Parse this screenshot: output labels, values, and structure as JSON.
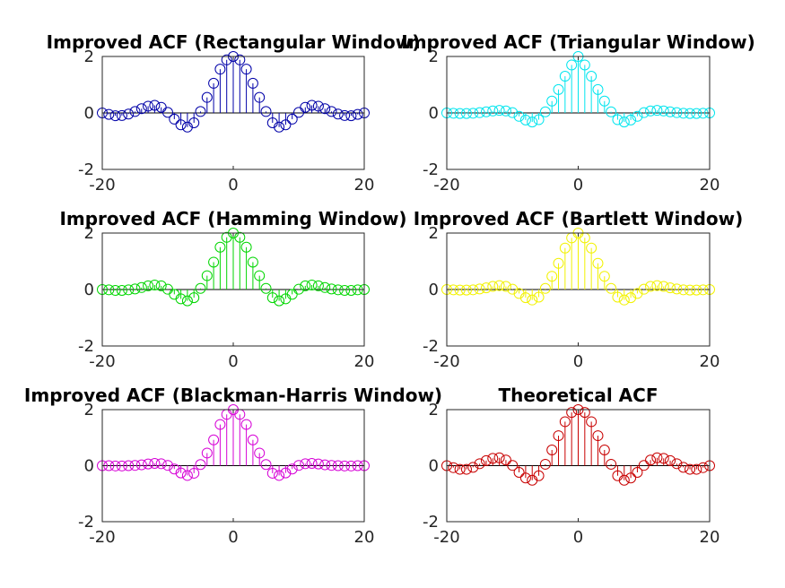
{
  "figure": {
    "background": "#ffffff"
  },
  "chart_data": [
    {
      "type": "stem",
      "title": "Improved ACF (Rectangular Window)",
      "color": "#0000a8",
      "xlim": [
        -20,
        20
      ],
      "ylim": [
        -2,
        2
      ],
      "xticks": [
        "-20",
        "0",
        "20"
      ],
      "yticks": [
        "-2",
        "0",
        "2"
      ],
      "x": [
        -20,
        -19,
        -18,
        -17,
        -16,
        -15,
        -14,
        -13,
        -12,
        -11,
        -10,
        -9,
        -8,
        -7,
        -6,
        -5,
        -4,
        -3,
        -2,
        -1,
        0,
        1,
        2,
        3,
        4,
        5,
        6,
        7,
        8,
        9,
        10,
        11,
        12,
        13,
        14,
        15,
        16,
        17,
        18,
        19,
        20
      ],
      "y": [
        0.0,
        -0.05,
        -0.1,
        -0.09,
        -0.04,
        0.05,
        0.15,
        0.24,
        0.27,
        0.2,
        0.02,
        -0.22,
        -0.42,
        -0.5,
        -0.35,
        0.05,
        0.55,
        1.05,
        1.55,
        1.88,
        2.0,
        1.88,
        1.55,
        1.05,
        0.55,
        0.05,
        -0.35,
        -0.5,
        -0.42,
        -0.22,
        0.02,
        0.2,
        0.27,
        0.24,
        0.15,
        0.05,
        -0.04,
        -0.09,
        -0.1,
        -0.05,
        0.0
      ]
    },
    {
      "type": "stem",
      "title": "Improved ACF (Triangular Window)",
      "color": "#00e5ee",
      "xlim": [
        -20,
        20
      ],
      "ylim": [
        -2,
        2
      ],
      "xticks": [
        "-20",
        "0",
        "20"
      ],
      "yticks": [
        "-2",
        "0",
        "2"
      ],
      "x": [
        -20,
        -19,
        -18,
        -17,
        -16,
        -15,
        -14,
        -13,
        -12,
        -11,
        -10,
        -9,
        -8,
        -7,
        -6,
        -5,
        -4,
        -3,
        -2,
        -1,
        0,
        1,
        2,
        3,
        4,
        5,
        6,
        7,
        8,
        9,
        10,
        11,
        12,
        13,
        14,
        15,
        16,
        17,
        18,
        19,
        20
      ],
      "y": [
        0.0,
        -0.01,
        -0.02,
        -0.02,
        -0.01,
        0.01,
        0.04,
        0.07,
        0.09,
        0.07,
        0.01,
        -0.12,
        -0.25,
        -0.32,
        -0.24,
        0.04,
        0.42,
        0.83,
        1.3,
        1.7,
        2.0,
        1.7,
        1.3,
        0.83,
        0.42,
        0.04,
        -0.24,
        -0.32,
        -0.25,
        -0.12,
        0.01,
        0.07,
        0.09,
        0.07,
        0.04,
        0.01,
        -0.01,
        -0.02,
        -0.02,
        -0.01,
        0.0
      ]
    },
    {
      "type": "stem",
      "title": "Improved ACF (Hamming Window)",
      "color": "#00d600",
      "xlim": [
        -20,
        20
      ],
      "ylim": [
        -2,
        2
      ],
      "xticks": [
        "-20",
        "0",
        "20"
      ],
      "yticks": [
        "-2",
        "0",
        "2"
      ],
      "x": [
        -20,
        -19,
        -18,
        -17,
        -16,
        -15,
        -14,
        -13,
        -12,
        -11,
        -10,
        -9,
        -8,
        -7,
        -6,
        -5,
        -4,
        -3,
        -2,
        -1,
        0,
        1,
        2,
        3,
        4,
        5,
        6,
        7,
        8,
        9,
        10,
        11,
        12,
        13,
        14,
        15,
        16,
        17,
        18,
        19,
        20
      ],
      "y": [
        0.0,
        -0.01,
        -0.03,
        -0.03,
        -0.01,
        0.02,
        0.07,
        0.13,
        0.16,
        0.13,
        0.01,
        -0.17,
        -0.33,
        -0.4,
        -0.29,
        0.04,
        0.49,
        0.97,
        1.5,
        1.85,
        2.0,
        1.85,
        1.5,
        0.97,
        0.49,
        0.04,
        -0.29,
        -0.4,
        -0.33,
        -0.17,
        0.01,
        0.13,
        0.16,
        0.13,
        0.07,
        0.02,
        -0.01,
        -0.03,
        -0.03,
        -0.01,
        0.0
      ]
    },
    {
      "type": "stem",
      "title": "Improved ACF (Bartlett Window)",
      "color": "#f2f200",
      "xlim": [
        -20,
        20
      ],
      "ylim": [
        -2,
        2
      ],
      "xticks": [
        "-20",
        "0",
        "20"
      ],
      "yticks": [
        "-2",
        "0",
        "2"
      ],
      "x": [
        -20,
        -19,
        -18,
        -17,
        -16,
        -15,
        -14,
        -13,
        -12,
        -11,
        -10,
        -9,
        -8,
        -7,
        -6,
        -5,
        -4,
        -3,
        -2,
        -1,
        0,
        1,
        2,
        3,
        4,
        5,
        6,
        7,
        8,
        9,
        10,
        11,
        12,
        13,
        14,
        15,
        16,
        17,
        18,
        19,
        20
      ],
      "y": [
        0.0,
        -0.01,
        -0.02,
        -0.02,
        -0.01,
        0.02,
        0.06,
        0.11,
        0.14,
        0.11,
        0.01,
        -0.14,
        -0.29,
        -0.37,
        -0.27,
        0.04,
        0.47,
        0.93,
        1.47,
        1.83,
        2.0,
        1.83,
        1.47,
        0.93,
        0.47,
        0.04,
        -0.27,
        -0.37,
        -0.29,
        -0.14,
        0.01,
        0.11,
        0.14,
        0.11,
        0.06,
        0.02,
        -0.01,
        -0.02,
        -0.02,
        -0.01,
        0.0
      ]
    },
    {
      "type": "stem",
      "title": "Improved ACF (Blackman-Harris Window)",
      "color": "#d600d6",
      "xlim": [
        -20,
        20
      ],
      "ylim": [
        -2,
        2
      ],
      "xticks": [
        "-20",
        "0",
        "20"
      ],
      "yticks": [
        "-2",
        "0",
        "2"
      ],
      "x": [
        -20,
        -19,
        -18,
        -17,
        -16,
        -15,
        -14,
        -13,
        -12,
        -11,
        -10,
        -9,
        -8,
        -7,
        -6,
        -5,
        -4,
        -3,
        -2,
        -1,
        0,
        1,
        2,
        3,
        4,
        5,
        6,
        7,
        8,
        9,
        10,
        11,
        12,
        13,
        14,
        15,
        16,
        17,
        18,
        19,
        20
      ],
      "y": [
        0.0,
        0.0,
        -0.01,
        -0.01,
        0.0,
        0.01,
        0.03,
        0.06,
        0.08,
        0.07,
        0.01,
        -0.12,
        -0.26,
        -0.35,
        -0.27,
        0.04,
        0.45,
        0.92,
        1.47,
        1.83,
        2.0,
        1.83,
        1.47,
        0.92,
        0.45,
        0.04,
        -0.27,
        -0.35,
        -0.26,
        -0.12,
        0.01,
        0.07,
        0.08,
        0.06,
        0.03,
        0.01,
        0.0,
        -0.01,
        -0.01,
        0.0,
        0.0
      ]
    },
    {
      "type": "stem",
      "title": "Theoretical ACF",
      "color": "#c80000",
      "xlim": [
        -20,
        20
      ],
      "ylim": [
        -2,
        2
      ],
      "xticks": [
        "-20",
        "0",
        "20"
      ],
      "yticks": [
        "-2",
        "0",
        "2"
      ],
      "x": [
        -20,
        -19,
        -18,
        -17,
        -16,
        -15,
        -14,
        -13,
        -12,
        -11,
        -10,
        -9,
        -8,
        -7,
        -6,
        -5,
        -4,
        -3,
        -2,
        -1,
        0,
        1,
        2,
        3,
        4,
        5,
        6,
        7,
        8,
        9,
        10,
        11,
        12,
        13,
        14,
        15,
        16,
        17,
        18,
        19,
        20
      ],
      "y": [
        0.0,
        -0.07,
        -0.13,
        -0.13,
        -0.06,
        0.07,
        0.18,
        0.26,
        0.28,
        0.2,
        0.01,
        -0.24,
        -0.44,
        -0.52,
        -0.36,
        0.05,
        0.56,
        1.07,
        1.57,
        1.9,
        2.0,
        1.9,
        1.57,
        1.07,
        0.56,
        0.05,
        -0.36,
        -0.52,
        -0.44,
        -0.24,
        0.01,
        0.2,
        0.28,
        0.26,
        0.18,
        0.07,
        -0.06,
        -0.13,
        -0.13,
        -0.07,
        0.0
      ]
    }
  ]
}
